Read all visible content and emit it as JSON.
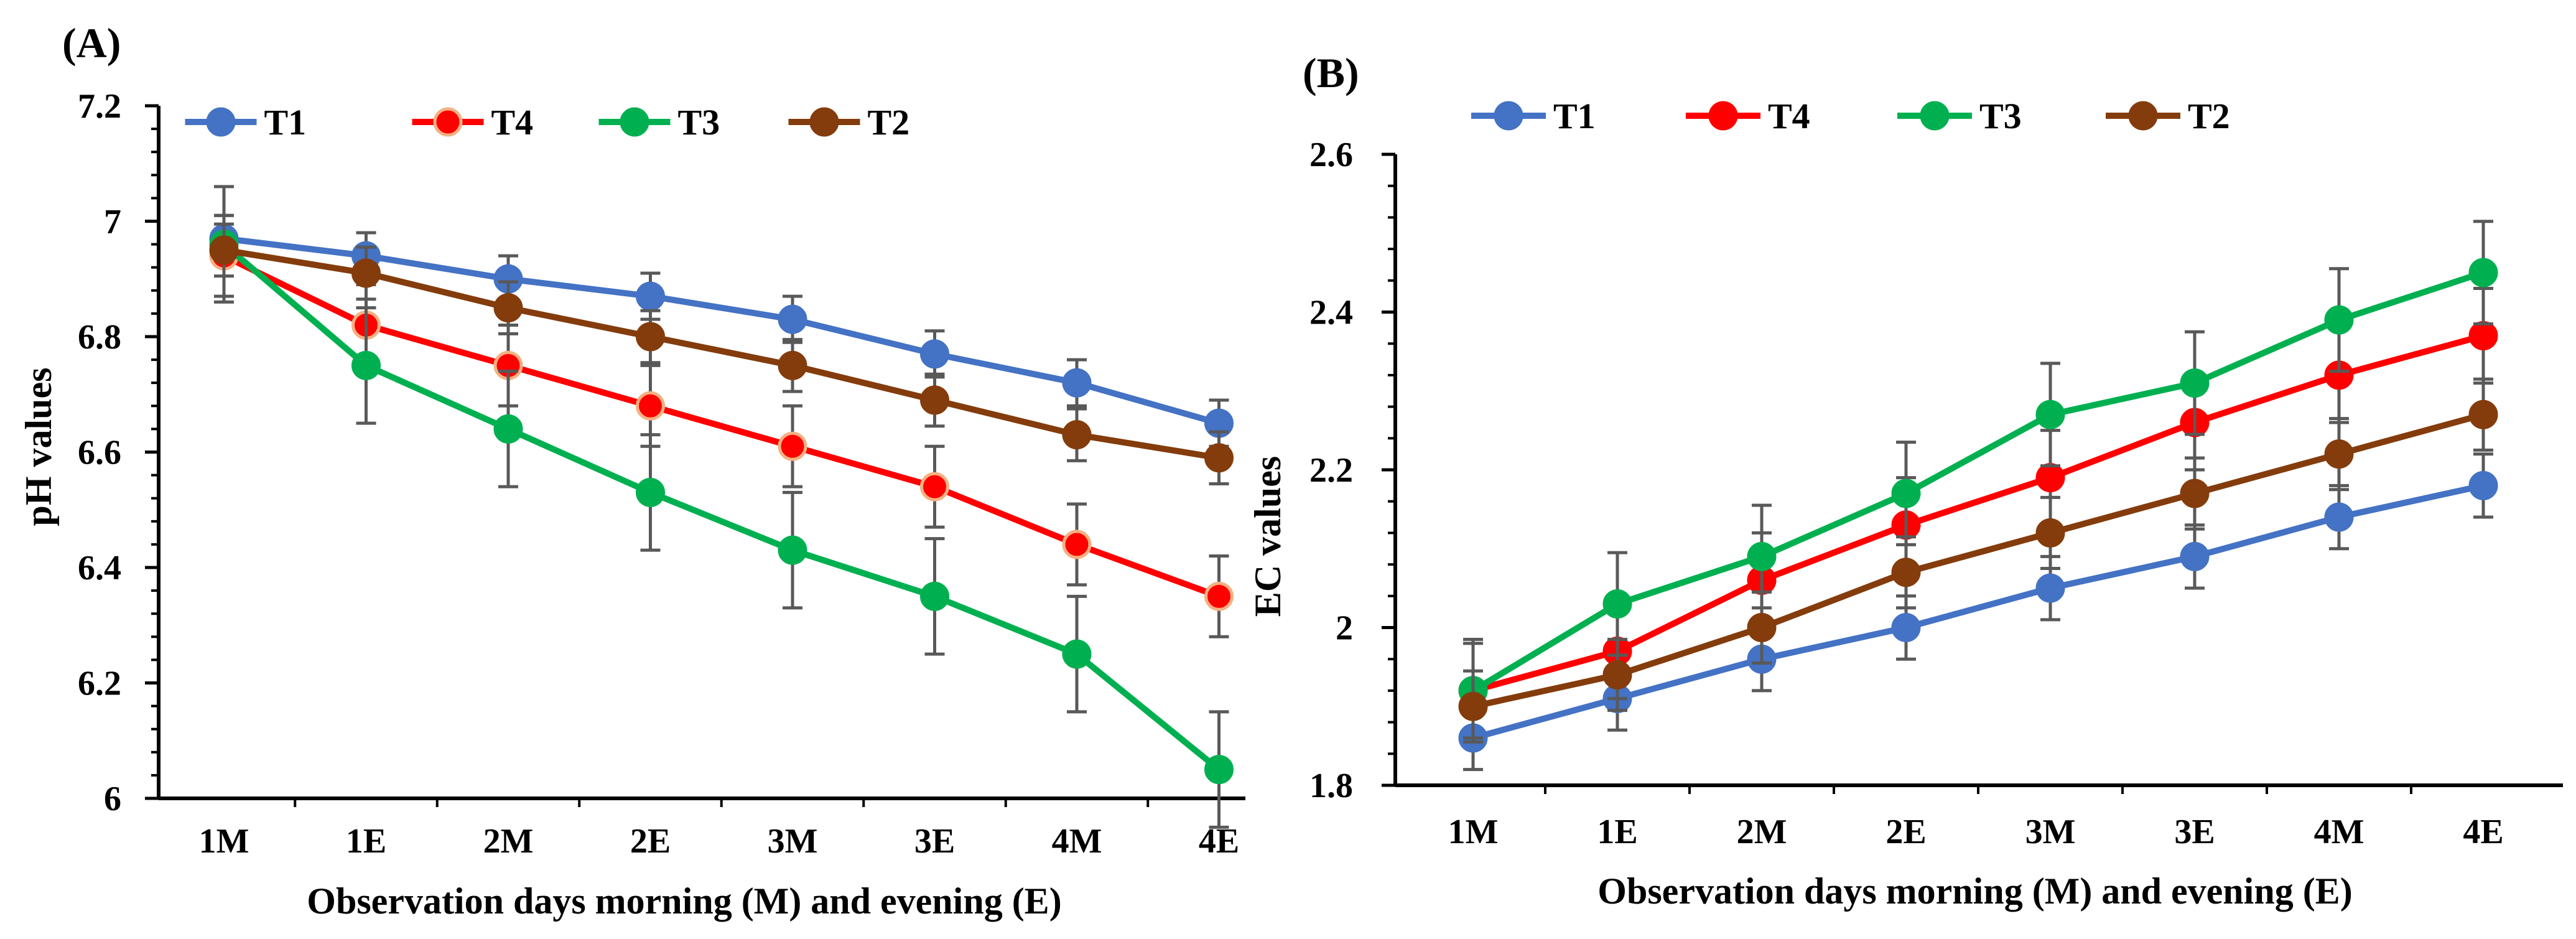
{
  "chart_data": [
    {
      "id": "A",
      "panel_label": "(A)",
      "type": "line",
      "categories": [
        "1M",
        "1E",
        "2M",
        "2E",
        "3M",
        "3E",
        "4M",
        "4E"
      ],
      "xlabel": "Observation days morning (M) and evening (E)",
      "ylabel": "pH values",
      "ylim": [
        6.0,
        7.2
      ],
      "yticks": [
        6,
        6.2,
        6.4,
        6.6,
        6.8,
        7,
        7.2
      ],
      "ytick_labels": [
        "6",
        "6.2",
        "6.4",
        "6.6",
        "6.8",
        "7",
        "7.2"
      ],
      "legend_position": "top",
      "series": [
        {
          "name": "T1",
          "color": "#4472C4",
          "marker_edge": "#4472C4",
          "values": [
            6.97,
            6.94,
            6.9,
            6.87,
            6.83,
            6.77,
            6.72,
            6.65
          ],
          "errors": [
            0.04,
            0.04,
            0.04,
            0.04,
            0.04,
            0.04,
            0.04,
            0.04
          ]
        },
        {
          "name": "T4",
          "color": "#FF0000",
          "marker_edge": "#F4B183",
          "values": [
            6.94,
            6.82,
            6.75,
            6.68,
            6.61,
            6.54,
            6.44,
            6.35
          ],
          "errors": [
            0.07,
            0.07,
            0.07,
            0.07,
            0.07,
            0.07,
            0.07,
            0.07
          ]
        },
        {
          "name": "T3",
          "color": "#00B050",
          "marker_edge": "#00B050",
          "values": [
            6.96,
            6.75,
            6.64,
            6.53,
            6.43,
            6.35,
            6.25,
            6.05
          ],
          "errors": [
            0.1,
            0.1,
            0.1,
            0.1,
            0.1,
            0.1,
            0.1,
            0.1
          ]
        },
        {
          "name": "T2",
          "color": "#843C0C",
          "marker_edge": "#843C0C",
          "values": [
            6.95,
            6.91,
            6.85,
            6.8,
            6.75,
            6.69,
            6.63,
            6.59
          ],
          "errors": [
            0.045,
            0.045,
            0.045,
            0.045,
            0.045,
            0.045,
            0.045,
            0.045
          ]
        }
      ],
      "legend_order": [
        "T1",
        "T4",
        "T3",
        "T2"
      ]
    },
    {
      "id": "B",
      "panel_label": "(B)",
      "type": "line",
      "categories": [
        "1M",
        "1E",
        "2M",
        "2E",
        "3M",
        "3E",
        "4M",
        "4E"
      ],
      "xlabel": "Observation days morning (M) and evening (E)",
      "ylabel": "EC values",
      "ylim": [
        1.8,
        2.6
      ],
      "yticks": [
        1.8,
        2.0,
        2.2,
        2.4,
        2.6
      ],
      "ytick_labels": [
        "1.8",
        "2",
        "2.2",
        "2.4",
        "2.6"
      ],
      "legend_position": "top",
      "series": [
        {
          "name": "T1",
          "color": "#4472C4",
          "marker_edge": "#4472C4",
          "values": [
            1.86,
            1.91,
            1.96,
            2.0,
            2.05,
            2.09,
            2.14,
            2.18
          ],
          "errors": [
            0.04,
            0.04,
            0.04,
            0.04,
            0.04,
            0.04,
            0.04,
            0.04
          ]
        },
        {
          "name": "T4",
          "color": "#FF0000",
          "marker_edge": "#FF0000",
          "values": [
            1.92,
            1.97,
            2.06,
            2.13,
            2.19,
            2.26,
            2.32,
            2.37
          ],
          "errors": [
            0.06,
            0.06,
            0.06,
            0.06,
            0.06,
            0.06,
            0.06,
            0.06
          ]
        },
        {
          "name": "T3",
          "color": "#00B050",
          "marker_edge": "#00B050",
          "values": [
            1.92,
            2.03,
            2.09,
            2.17,
            2.27,
            2.31,
            2.39,
            2.45
          ],
          "errors": [
            0.065,
            0.065,
            0.065,
            0.065,
            0.065,
            0.065,
            0.065,
            0.065
          ]
        },
        {
          "name": "T2",
          "color": "#843C0C",
          "marker_edge": "#843C0C",
          "values": [
            1.9,
            1.94,
            2.0,
            2.07,
            2.12,
            2.17,
            2.22,
            2.27
          ],
          "errors": [
            0.045,
            0.045,
            0.045,
            0.045,
            0.045,
            0.045,
            0.045,
            0.045
          ]
        }
      ],
      "legend_order": [
        "T1",
        "T4",
        "T3",
        "T2"
      ]
    }
  ]
}
